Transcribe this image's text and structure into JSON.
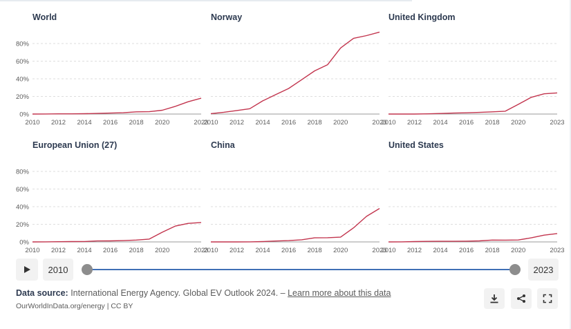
{
  "chart_data": {
    "type": "line",
    "y_tick_labels": [
      "0%",
      "20%",
      "40%",
      "60%",
      "80%"
    ],
    "y_tick_values": [
      0,
      20,
      40,
      60,
      80
    ],
    "ylim": [
      0,
      95
    ],
    "xlim": [
      2010,
      2023
    ],
    "x_tick_labels": [
      "2010",
      "2012",
      "2014",
      "2016",
      "2018",
      "2020",
      "2023"
    ],
    "x_tick_values": [
      2010,
      2012,
      2014,
      2016,
      2018,
      2020,
      2023
    ],
    "years": [
      2010,
      2011,
      2012,
      2013,
      2014,
      2015,
      2016,
      2017,
      2018,
      2019,
      2020,
      2021,
      2022,
      2023
    ],
    "series_color": "#c2344d",
    "panels": [
      {
        "name": "World",
        "values": [
          0,
          0.1,
          0.2,
          0.2,
          0.4,
          0.7,
          1.1,
          1.5,
          2.5,
          2.7,
          4.3,
          8.7,
          14,
          18
        ]
      },
      {
        "name": "Norway",
        "values": [
          0.5,
          2,
          4,
          6,
          15,
          22,
          29,
          39,
          49,
          56,
          75,
          86,
          89,
          93
        ]
      },
      {
        "name": "United Kingdom",
        "values": [
          0,
          0,
          0,
          0.2,
          0.6,
          1.1,
          1.4,
          1.9,
          2.5,
          3.2,
          11,
          19,
          23,
          24
        ]
      },
      {
        "name": "European Union (27)",
        "values": [
          0,
          0.1,
          0.2,
          0.4,
          0.5,
          1.1,
          1.2,
          1.5,
          2.1,
          3.2,
          11,
          18,
          21,
          22
        ]
      },
      {
        "name": "China",
        "values": [
          0,
          0,
          0,
          0.1,
          0.4,
          1,
          1.5,
          2.4,
          4.6,
          4.8,
          5.4,
          16,
          29,
          38
        ]
      },
      {
        "name": "United States",
        "values": [
          0,
          0.1,
          0.4,
          0.6,
          0.7,
          0.7,
          0.9,
          1.2,
          2.1,
          2,
          2.2,
          4.6,
          7.7,
          9.5
        ]
      }
    ]
  },
  "timeline": {
    "start_year": "2010",
    "end_year": "2023",
    "play_icon": "play-icon"
  },
  "footer": {
    "source_label": "Data source:",
    "source_text": " International Energy Agency. Global EV Outlook 2024. – ",
    "learn_more": "Learn more about this data",
    "credit": "OurWorldInData.org/energy | CC BY"
  },
  "actions": {
    "download_icon": "download-icon",
    "share_icon": "share-icon",
    "fullscreen_icon": "fullscreen-icon"
  }
}
